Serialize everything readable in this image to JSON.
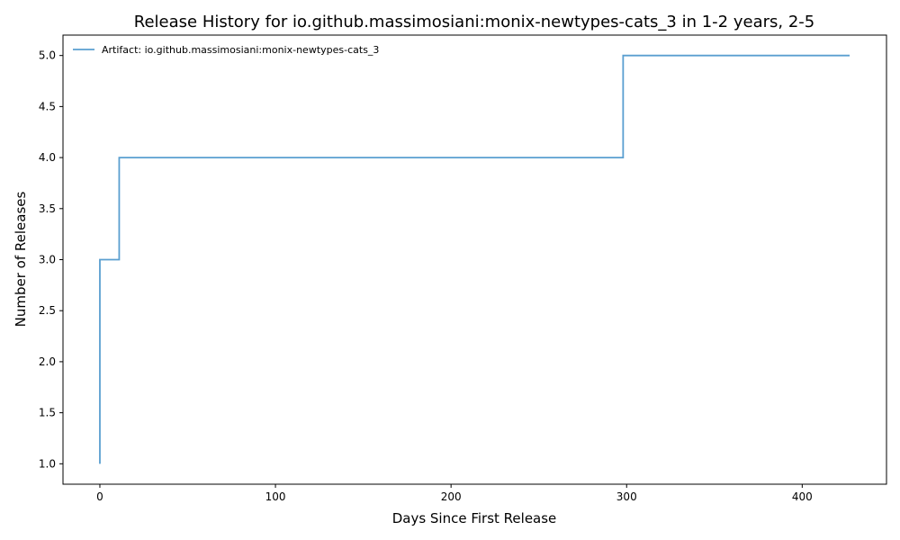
{
  "chart_data": {
    "type": "line",
    "drawstyle": "steps-post",
    "title": "Release History for io.github.massimosiani:monix-newtypes-cats_3 in 1-2 years, 2-5",
    "xlabel": "Days Since First Release",
    "ylabel": "Number of Releases",
    "xlim": [
      -21,
      448
    ],
    "ylim": [
      0.8,
      5.2
    ],
    "xticks": [
      0,
      100,
      200,
      300,
      400
    ],
    "xtick_labels": [
      "0",
      "100",
      "200",
      "300",
      "400"
    ],
    "yticks": [
      1.0,
      1.5,
      2.0,
      2.5,
      3.0,
      3.5,
      4.0,
      4.5,
      5.0
    ],
    "ytick_labels": [
      "1.0",
      "1.5",
      "2.0",
      "2.5",
      "3.0",
      "3.5",
      "4.0",
      "4.5",
      "5.0"
    ],
    "grid": false,
    "legend_position": "top-left",
    "series": [
      {
        "name": "Artifact: io.github.massimosiani:monix-newtypes-cats_3",
        "color": "#5a9fd0",
        "x": [
          0,
          0,
          0,
          11,
          298,
          427
        ],
        "y": [
          1,
          2,
          3,
          4,
          5,
          5
        ]
      }
    ]
  }
}
